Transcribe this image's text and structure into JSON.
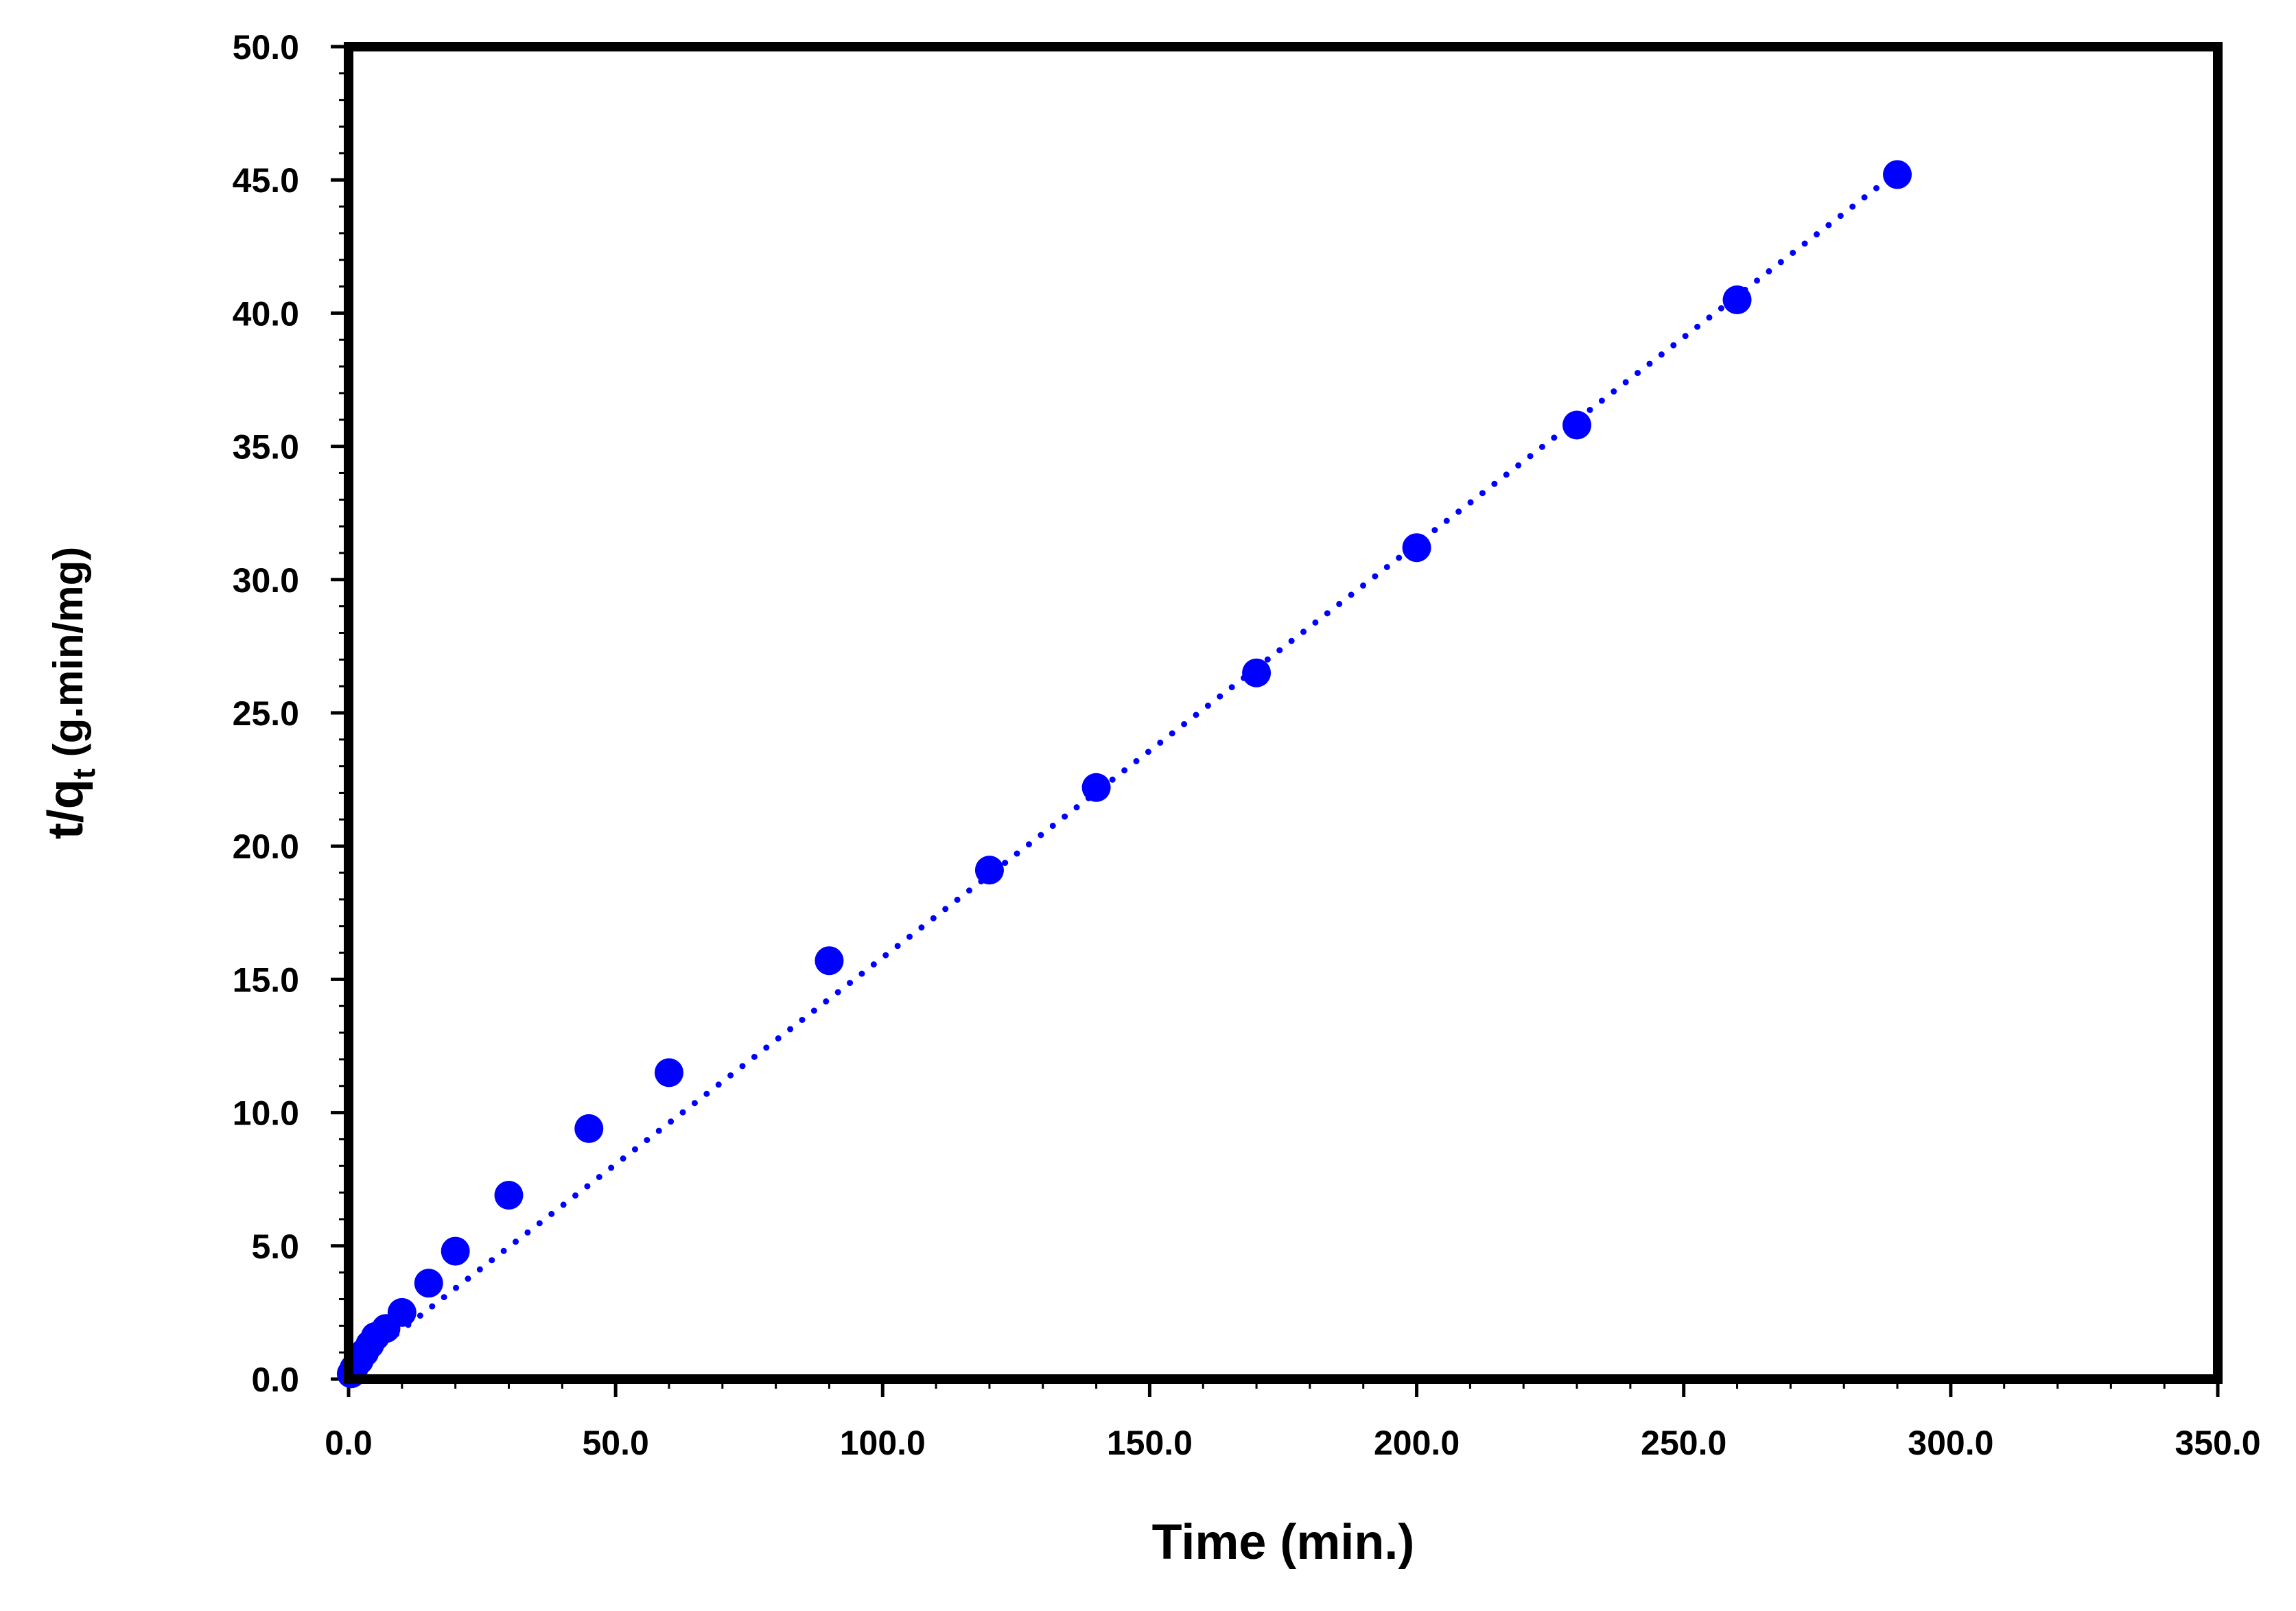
{
  "chart_data": {
    "type": "scatter",
    "xlabel": "Time (min.)",
    "ylabel_main": "t/q",
    "ylabel_sub": "t",
    "ylabel_unit": " (g.min/mg)",
    "xlim": [
      0,
      350
    ],
    "ylim": [
      0,
      50
    ],
    "x_ticks": [
      "0.0",
      "50.0",
      "100.0",
      "150.0",
      "200.0",
      "250.0",
      "300.0",
      "350.0"
    ],
    "y_ticks": [
      "0.0",
      "5.0",
      "10.0",
      "15.0",
      "20.0",
      "25.0",
      "30.0",
      "35.0",
      "40.0",
      "45.0",
      "50.0"
    ],
    "grid": false,
    "legend": "none",
    "marker_color": "#0000ff",
    "series": [
      {
        "points": [
          {
            "x": 0.5,
            "y": 0.2
          },
          {
            "x": 1,
            "y": 0.4
          },
          {
            "x": 2,
            "y": 0.7
          },
          {
            "x": 3,
            "y": 1.0
          },
          {
            "x": 4,
            "y": 1.3
          },
          {
            "x": 5,
            "y": 1.6
          },
          {
            "x": 7,
            "y": 1.9
          },
          {
            "x": 10,
            "y": 2.5
          },
          {
            "x": 15,
            "y": 3.6
          },
          {
            "x": 20,
            "y": 4.8
          },
          {
            "x": 30,
            "y": 6.9
          },
          {
            "x": 45,
            "y": 9.4
          },
          {
            "x": 60,
            "y": 11.5
          },
          {
            "x": 90,
            "y": 15.7
          },
          {
            "x": 120,
            "y": 19.1
          },
          {
            "x": 140,
            "y": 22.2
          },
          {
            "x": 170,
            "y": 26.5
          },
          {
            "x": 200,
            "y": 31.2
          },
          {
            "x": 230,
            "y": 35.8
          },
          {
            "x": 260,
            "y": 40.5
          },
          {
            "x": 290,
            "y": 45.2
          }
        ]
      }
    ],
    "trendline": {
      "style": "dotted",
      "color": "#0000ff",
      "x": [
        0,
        290
      ],
      "y": [
        0.3,
        45.3
      ]
    }
  }
}
